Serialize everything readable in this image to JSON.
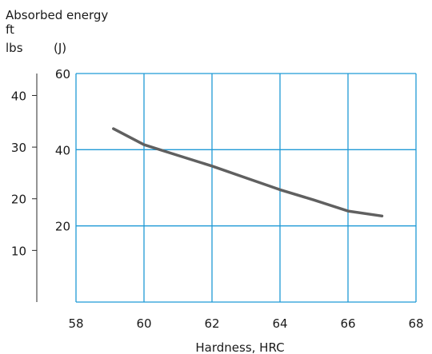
{
  "chart_data": {
    "type": "line",
    "title": "Absorbed energy",
    "left_unit_top": "ft",
    "left_unit_bottom": "lbs",
    "right_unit": "(J)",
    "xlabel": "Hardness, HRC",
    "xlim": [
      58,
      68
    ],
    "x_ticks": [
      "58",
      "60",
      "62",
      "64",
      "66",
      "68"
    ],
    "ylim_joules": [
      0,
      60
    ],
    "y_ticks_joules": [
      "20",
      "40",
      "60"
    ],
    "ylim_ftlbs": [
      0,
      44.25
    ],
    "y_ticks_ftlbs": [
      "10",
      "20",
      "30",
      "40"
    ],
    "grid": true,
    "colors": {
      "grid": "#1f9ad6",
      "line": "#606060"
    },
    "series": [
      {
        "x": [
          59.1,
          60,
          61,
          62,
          63,
          64,
          65,
          66,
          67
        ],
        "y_joules": [
          45.5,
          41.3,
          38.5,
          35.7,
          32.6,
          29.5,
          26.8,
          23.9,
          22.6
        ]
      }
    ]
  }
}
